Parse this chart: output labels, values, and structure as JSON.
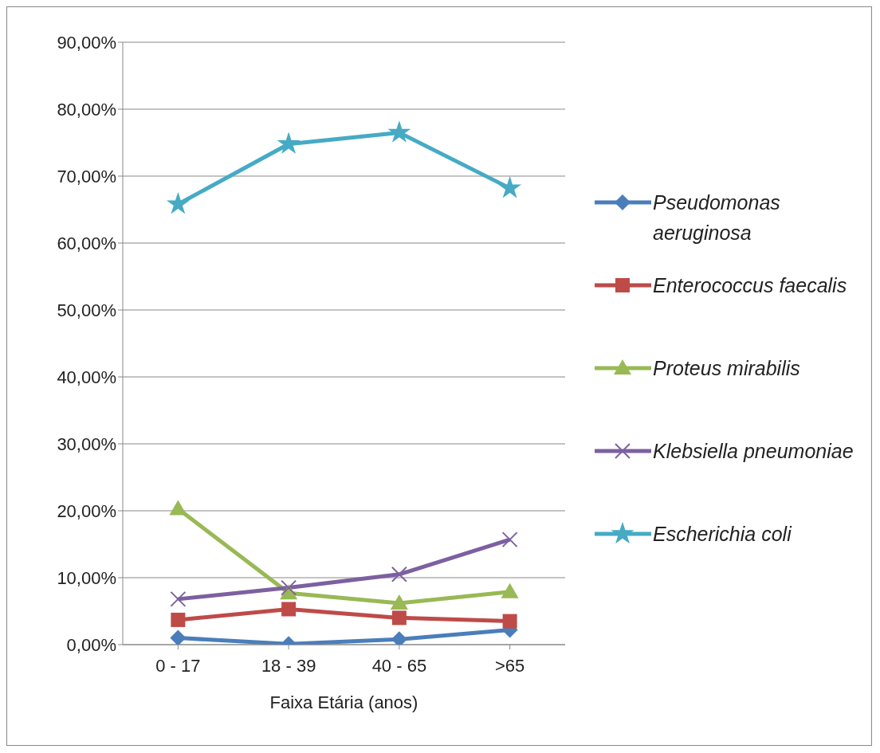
{
  "chart_data": {
    "type": "line",
    "xlabel": "Faixa Etária (anos)",
    "categories": [
      "0 - 17",
      "18 - 39",
      "40 - 65",
      ">65"
    ],
    "series": [
      {
        "name": "Pseudomonas aeruginosa",
        "color": "#4a7ebb",
        "marker": "diamond",
        "values": [
          1.0,
          0.1,
          0.8,
          2.2
        ]
      },
      {
        "name": "Enterococcus faecalis",
        "color": "#be4b48",
        "marker": "square",
        "values": [
          3.7,
          5.3,
          4.0,
          3.5
        ]
      },
      {
        "name": "Proteus mirabilis",
        "color": "#98b954",
        "marker": "triangle",
        "values": [
          20.3,
          7.7,
          6.2,
          7.9
        ]
      },
      {
        "name": "Klebsiella pneumoniae",
        "color": "#7d60a0",
        "marker": "cross",
        "values": [
          6.8,
          8.5,
          10.5,
          15.7
        ]
      },
      {
        "name": "Escherichia coli",
        "color": "#46aac5",
        "marker": "star",
        "values": [
          65.8,
          74.8,
          76.5,
          68.2
        ]
      }
    ],
    "ylim": [
      0,
      90
    ],
    "yticks": [
      {
        "value": 0,
        "label": "0,00%"
      },
      {
        "value": 10,
        "label": "10,00%"
      },
      {
        "value": 20,
        "label": "20,00%"
      },
      {
        "value": 30,
        "label": "30,00%"
      },
      {
        "value": 40,
        "label": "40,00%"
      },
      {
        "value": 50,
        "label": "50,00%"
      },
      {
        "value": 60,
        "label": "60,00%"
      },
      {
        "value": 70,
        "label": "70,00%"
      },
      {
        "value": 80,
        "label": "80,00%"
      },
      {
        "value": 90,
        "label": "90,00%"
      }
    ],
    "grid": "y",
    "legend": "right",
    "line_style": "solid"
  }
}
